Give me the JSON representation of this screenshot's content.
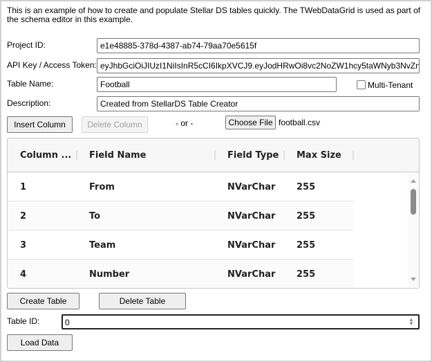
{
  "intro": "This is an example of how to create and populate Stellar DS tables quickly. The TWebDataGrid is used as part of the schema editor in this example.",
  "form": {
    "project_id_label": "Project ID:",
    "project_id": "e1e48885-378d-4387-ab74-79aa70e5615f",
    "api_key_label": "API Key / Access Token:",
    "api_key": "eyJhbGciOiJIUzI1NiIsInR5cCI6IkpXVCJ9.eyJodHRwOi8vc2NoZW1hcy5taWNyb3NvZnQuY29tL3",
    "table_name_label": "Table Name:",
    "table_name": "Football",
    "multi_tenant_label": "Multi-Tenant",
    "multi_tenant": false,
    "description_label": "Description:",
    "description": "Created from StellarDS Table Creator"
  },
  "toolbar": {
    "insert_column": "Insert Column",
    "delete_column": "Delete Column",
    "or": "- or -",
    "choose_file": "Choose File",
    "file_name": "football.csv"
  },
  "grid": {
    "headers": [
      "Column ...",
      "Field Name",
      "Field Type",
      "Max Size"
    ],
    "rows": [
      [
        "1",
        "From",
        "NVarChar",
        "255"
      ],
      [
        "2",
        "To",
        "NVarChar",
        "255"
      ],
      [
        "3",
        "Team",
        "NVarChar",
        "255"
      ],
      [
        "4",
        "Number",
        "NVarChar",
        "255"
      ]
    ]
  },
  "actions": {
    "create_table": "Create Table",
    "delete_table": "Delete Table",
    "table_id_label": "Table ID:",
    "table_id": "0",
    "load_data": "Load Data"
  }
}
